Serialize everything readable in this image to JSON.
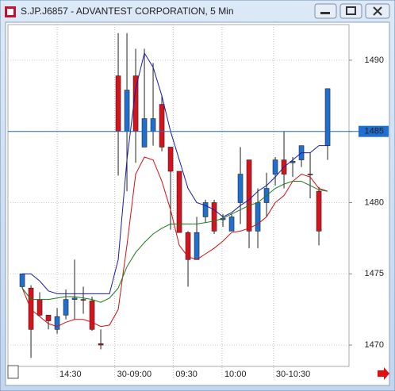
{
  "window_title": "S.JP.J6857 - ADVANTEST CORPORATION, 5 Min",
  "chart_data": {
    "type": "candlestick",
    "xlim": [
      -1.64,
      37.45
    ],
    "xticks": [
      {
        "value": 4,
        "label": "14:30"
      },
      {
        "value": 10.6,
        "label": "30-09:00"
      },
      {
        "value": 17.3,
        "label": "09:30"
      },
      {
        "value": 22.9,
        "label": "10:00"
      },
      {
        "value": 28.8,
        "label": "30-10:30"
      }
    ],
    "ylim": [
      1468.5,
      1492.5
    ],
    "yticks": [
      1470,
      1475,
      1480,
      1485,
      1490
    ],
    "grid": true,
    "price_line": 1485,
    "up_color": "#1f6fd1",
    "down_color": "#d8121b",
    "open": [
      1474.1,
      1474,
      1473.2,
      1472.1,
      1471.1,
      1472.1,
      1473.2,
      1473.2,
      1473.1,
      1470.1,
      null,
      1488.9,
      1485,
      1488.9,
      1483.9,
      1485,
      1486.9,
      1483.9,
      1482.2,
      1477.9,
      1476,
      1479,
      1480,
      1478.8,
      1478,
      1480,
      1483,
      1478,
      1480,
      1482,
      1483,
      1482.8,
      1483,
      1482,
      1480.8,
      1484
    ],
    "high": [
      1475,
      1474.2,
      1473.7,
      1472.1,
      1472.6,
      1473.9,
      1476,
      1474.1,
      1473.4,
      1471.1,
      null,
      1491.9,
      1491.9,
      1490.8,
      1490.8,
      1489.8,
      1487.5,
      1483.9,
      1482.2,
      1478,
      1479,
      1480.2,
      1480.2,
      1479.2,
      1479.2,
      1483.9,
      1483,
      1481,
      1482.1,
      1483.2,
      1485,
      1483.2,
      1484,
      1483.5,
      1481.1,
      1488
    ],
    "low": [
      1474,
      1469.1,
      1472,
      1471.1,
      1470.8,
      1471.8,
      1471.8,
      1472.2,
      1471,
      1469.7,
      null,
      1481.9,
      1480.8,
      1482.8,
      1483.9,
      1484,
      1483.6,
      1478.1,
      1477.9,
      1474.1,
      1476,
      1478.6,
      1477.8,
      1478.3,
      1478,
      1478.5,
      1476.8,
      1476.8,
      1479,
      1481.2,
      1481,
      1481.8,
      1482.5,
      1480.3,
      1477,
      1483
    ],
    "close": [
      1475,
      1471.1,
      1472.1,
      1471.7,
      1472,
      1473.2,
      1473.3,
      1473.2,
      1471.1,
      1470,
      null,
      1485,
      1487.9,
      1485,
      1485.9,
      1485.9,
      1483.9,
      1482.2,
      1477.9,
      1476,
      1477.9,
      1480,
      1478,
      1478.9,
      1479,
      1482,
      1478,
      1480,
      1481,
      1483,
      1482,
      1482.9,
      1484,
      1482,
      1478,
      1488
    ],
    "series": [
      {
        "color": "#1a1aa6",
        "values": [
          1475,
          1475,
          1474.5,
          1473.8,
          1473.6,
          1473.6,
          1473.6,
          1473.6,
          1473.6,
          1473.6,
          1473.6,
          1476,
          1483,
          1488,
          1490.5,
          1489.5,
          1487.5,
          1485,
          1483,
          1481,
          1480,
          1479.8,
          1479.5,
          1479,
          1479.3,
          1479.8,
          1480.2,
          1480.8,
          1481.2,
          1481.8,
          1482.5,
          1483,
          1483.5,
          1483.5,
          1484,
          1484
        ]
      },
      {
        "color": "#d01010",
        "values": [
          1474,
          1472.5,
          1472,
          1471.5,
          1471.3,
          1471.6,
          1471.8,
          1471.8,
          1471.6,
          1471.3,
          1471.4,
          1472.5,
          1477,
          1482,
          1483.2,
          1483,
          1481.5,
          1479.5,
          1477,
          1476.2,
          1476,
          1476.4,
          1476.8,
          1477.3,
          1477.9,
          1478,
          1478.2,
          1478.5,
          1479,
          1480,
          1480.5,
          1481.5,
          1482,
          1481.8,
          1481,
          1480.8
        ]
      },
      {
        "color": "#1c7a1c",
        "values": [
          1474,
          1473.2,
          1473.2,
          1473.2,
          1473.3,
          1473.4,
          1473.4,
          1473.3,
          1473.2,
          1473,
          1473.3,
          1474,
          1475.5,
          1476.5,
          1477.2,
          1477.8,
          1478.2,
          1478.5,
          1478.5,
          1478.5,
          1478.5,
          1478.6,
          1478.7,
          1478.9,
          1479.2,
          1479.5,
          1479.8,
          1480,
          1480.5,
          1481,
          1481.3,
          1481.5,
          1481.5,
          1481.2,
          1480.9,
          1480.8
        ]
      }
    ]
  }
}
